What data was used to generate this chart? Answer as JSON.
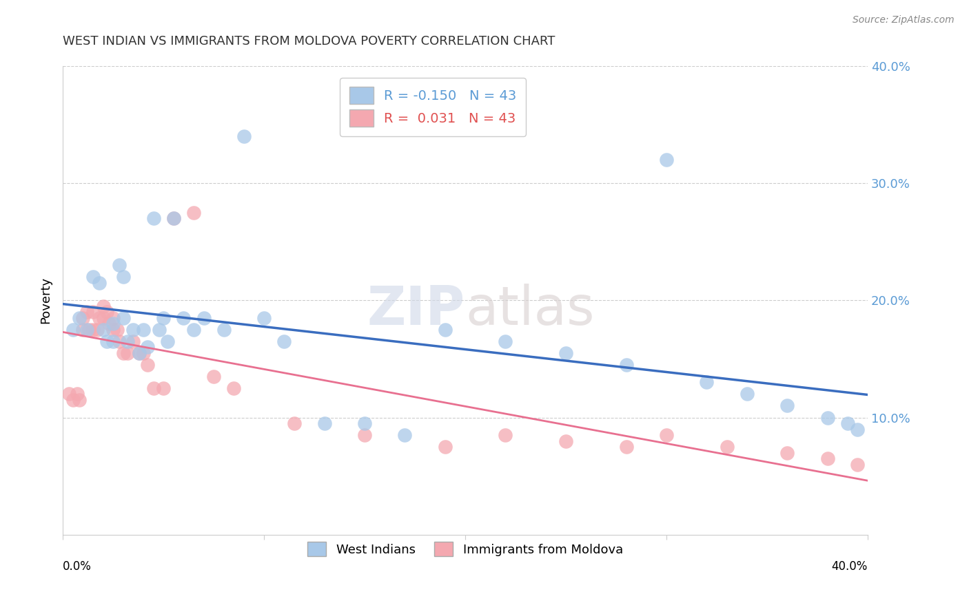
{
  "title": "WEST INDIAN VS IMMIGRANTS FROM MOLDOVA POVERTY CORRELATION CHART",
  "source": "Source: ZipAtlas.com",
  "ylabel": "Poverty",
  "xlim": [
    0,
    0.4
  ],
  "ylim": [
    0,
    0.4
  ],
  "yticks": [
    0.1,
    0.2,
    0.3,
    0.4
  ],
  "ytick_labels": [
    "10.0%",
    "20.0%",
    "30.0%",
    "40.0%"
  ],
  "xtick_labels": [
    "0.0%",
    "40.0%"
  ],
  "xtick_positions": [
    0.0,
    0.4
  ],
  "legend_r_blue": "-0.150",
  "legend_r_pink": "0.031",
  "legend_n": "43",
  "blue_scatter_color": "#a8c8e8",
  "pink_scatter_color": "#f4a8b0",
  "blue_line_color": "#3a6dbf",
  "pink_line_color": "#e87090",
  "tick_color": "#5b9bd5",
  "west_indian_x": [
    0.008,
    0.012,
    0.015,
    0.018,
    0.02,
    0.022,
    0.025,
    0.025,
    0.028,
    0.03,
    0.03,
    0.032,
    0.035,
    0.038,
    0.04,
    0.042,
    0.045,
    0.048,
    0.05,
    0.052,
    0.055,
    0.06,
    0.065,
    0.07,
    0.08,
    0.09,
    0.1,
    0.11,
    0.13,
    0.15,
    0.17,
    0.19,
    0.22,
    0.25,
    0.28,
    0.3,
    0.32,
    0.34,
    0.36,
    0.38,
    0.39,
    0.395,
    0.005
  ],
  "west_indian_y": [
    0.185,
    0.175,
    0.22,
    0.215,
    0.175,
    0.165,
    0.18,
    0.165,
    0.23,
    0.22,
    0.185,
    0.165,
    0.175,
    0.155,
    0.175,
    0.16,
    0.27,
    0.175,
    0.185,
    0.165,
    0.27,
    0.185,
    0.175,
    0.185,
    0.175,
    0.34,
    0.185,
    0.165,
    0.095,
    0.095,
    0.085,
    0.175,
    0.165,
    0.155,
    0.145,
    0.32,
    0.13,
    0.12,
    0.11,
    0.1,
    0.095,
    0.09,
    0.175
  ],
  "moldova_x": [
    0.003,
    0.005,
    0.007,
    0.008,
    0.01,
    0.01,
    0.012,
    0.013,
    0.015,
    0.015,
    0.017,
    0.018,
    0.02,
    0.02,
    0.022,
    0.023,
    0.025,
    0.025,
    0.027,
    0.028,
    0.03,
    0.032,
    0.035,
    0.038,
    0.04,
    0.042,
    0.045,
    0.05,
    0.055,
    0.065,
    0.075,
    0.085,
    0.115,
    0.15,
    0.19,
    0.22,
    0.25,
    0.28,
    0.3,
    0.33,
    0.36,
    0.38,
    0.395
  ],
  "moldova_y": [
    0.12,
    0.115,
    0.12,
    0.115,
    0.175,
    0.185,
    0.19,
    0.175,
    0.19,
    0.175,
    0.175,
    0.185,
    0.195,
    0.185,
    0.19,
    0.18,
    0.185,
    0.175,
    0.175,
    0.165,
    0.155,
    0.155,
    0.165,
    0.155,
    0.155,
    0.145,
    0.125,
    0.125,
    0.27,
    0.275,
    0.135,
    0.125,
    0.095,
    0.085,
    0.075,
    0.085,
    0.08,
    0.075,
    0.085,
    0.075,
    0.07,
    0.065,
    0.06
  ]
}
